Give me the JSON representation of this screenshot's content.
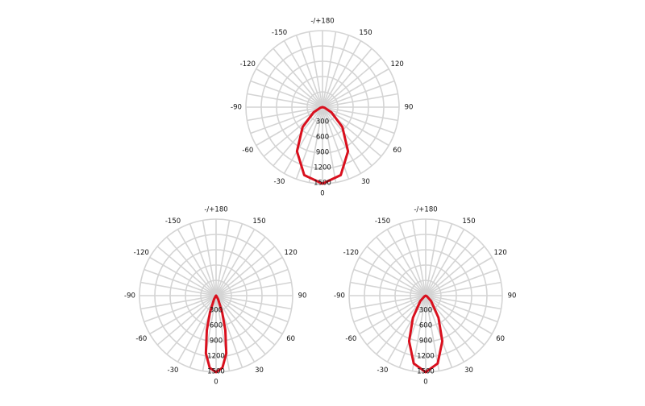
{
  "chart_data": [
    {
      "type": "polar",
      "x": [
        -90,
        -75,
        -60,
        -45,
        -30,
        -15,
        0,
        15,
        30,
        45,
        60,
        75,
        90
      ],
      "series": [
        {
          "color": "#d9101e",
          "values": [
            0,
            40,
            200,
            550,
            1000,
            1380,
            1500,
            1380,
            1000,
            550,
            200,
            40,
            0
          ]
        }
      ],
      "xlim": [
        -180,
        180
      ],
      "xticks": [
        0,
        30,
        60,
        90,
        120,
        150,
        {
          "value": 180,
          "label": "-/+180"
        },
        -150,
        -120,
        -90,
        -60,
        -30
      ],
      "ylim": [
        0,
        1500
      ],
      "yticks": [
        300,
        600,
        900,
        1200,
        1500
      ],
      "grid": true
    },
    {
      "type": "polar",
      "x": [
        -60,
        -45,
        -30,
        -20,
        -15,
        -10,
        -5,
        0,
        5,
        10,
        15,
        20,
        30,
        45,
        60
      ],
      "series": [
        {
          "color": "#d9101e",
          "values": [
            0,
            10,
            80,
            350,
            700,
            1150,
            1420,
            1500,
            1420,
            1150,
            700,
            350,
            80,
            10,
            0
          ]
        }
      ],
      "xlim": [
        -180,
        180
      ],
      "xticks": [
        0,
        30,
        60,
        90,
        120,
        150,
        {
          "value": 180,
          "label": "-/+180"
        },
        -150,
        -120,
        -90,
        -60,
        -30
      ],
      "ylim": [
        0,
        1500
      ],
      "yticks": [
        300,
        600,
        900,
        1200,
        1500
      ],
      "grid": true
    },
    {
      "type": "polar",
      "x": [
        -90,
        -60,
        -45,
        -30,
        -20,
        -10,
        0,
        10,
        20,
        30,
        45,
        60,
        90
      ],
      "series": [
        {
          "color": "#d9101e",
          "values": [
            0,
            30,
            150,
            500,
            950,
            1350,
            1500,
            1350,
            950,
            500,
            150,
            30,
            0
          ]
        }
      ],
      "xlim": [
        -180,
        180
      ],
      "xticks": [
        0,
        30,
        60,
        90,
        120,
        150,
        {
          "value": 180,
          "label": "-/+180"
        },
        -150,
        -120,
        -90,
        -60,
        -30
      ],
      "ylim": [
        0,
        1500
      ],
      "yticks": [
        300,
        600,
        900,
        1200,
        1500
      ],
      "grid": true
    }
  ]
}
